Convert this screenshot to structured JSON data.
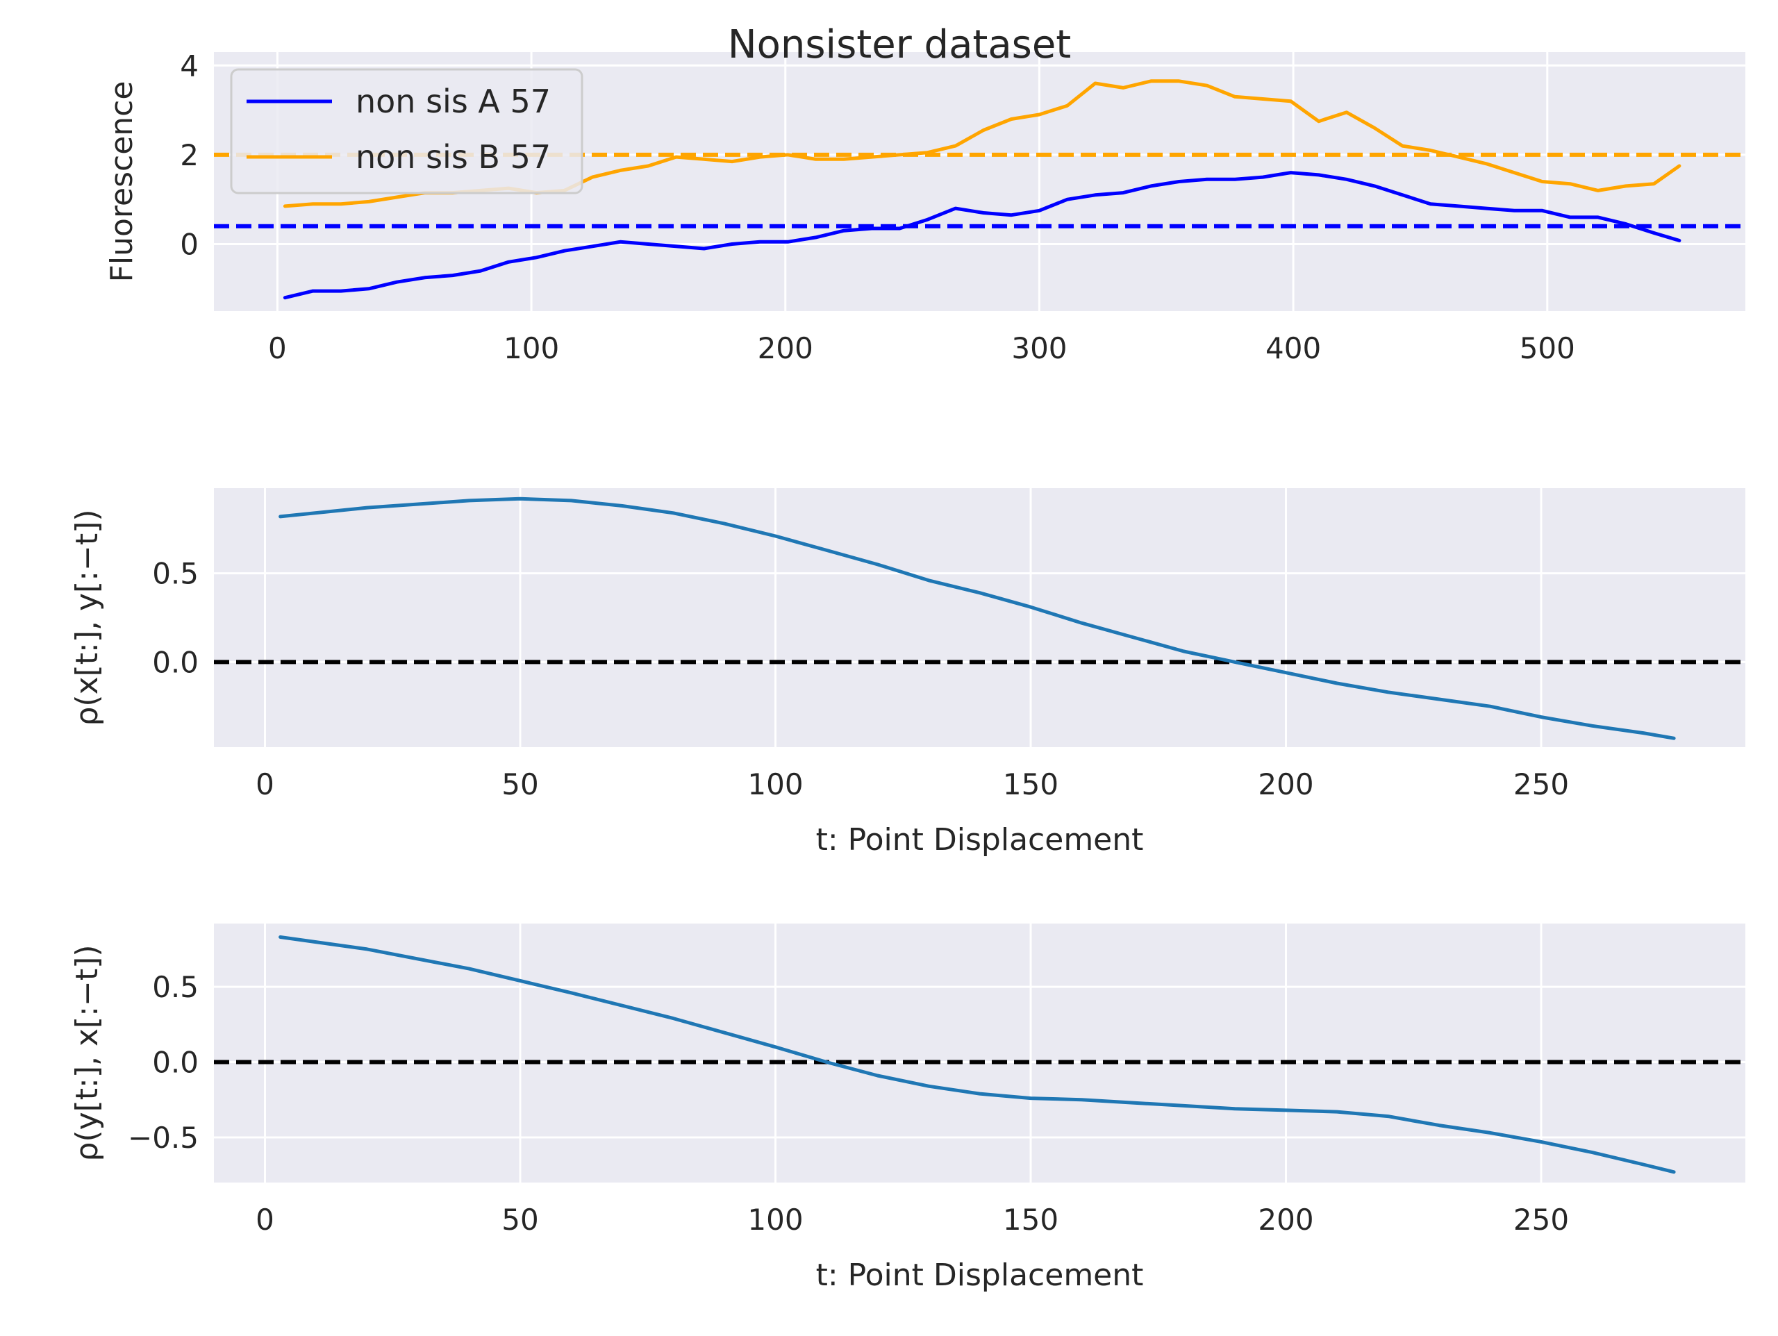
{
  "figure": {
    "title": "Nonsister dataset"
  },
  "chart_data": [
    {
      "type": "line",
      "title": "Nonsister dataset",
      "xlabel": "",
      "ylabel": "Fluorescence",
      "xlim": [
        -25,
        578
      ],
      "ylim": [
        -1.5,
        4.3
      ],
      "xticks": [
        0,
        100,
        200,
        300,
        400,
        500
      ],
      "yticks": [
        0,
        2,
        4
      ],
      "grid": true,
      "legend": "top-left",
      "series": [
        {
          "name": "non sis A 57",
          "color": "#0000ff",
          "x": [
            3,
            14,
            25,
            36,
            47,
            58,
            69,
            80,
            91,
            102,
            113,
            124,
            135,
            146,
            157,
            168,
            179,
            190,
            201,
            212,
            223,
            234,
            245,
            256,
            267,
            278,
            289,
            300,
            311,
            322,
            333,
            344,
            355,
            366,
            377,
            388,
            399,
            410,
            421,
            432,
            443,
            454,
            465,
            476,
            487,
            498,
            509,
            520,
            531,
            542,
            552
          ],
          "values": [
            -1.2,
            -1.05,
            -1.05,
            -1.0,
            -0.85,
            -0.75,
            -0.7,
            -0.6,
            -0.4,
            -0.3,
            -0.15,
            -0.05,
            0.05,
            0.0,
            -0.05,
            -0.1,
            0.0,
            0.05,
            0.05,
            0.15,
            0.3,
            0.35,
            0.35,
            0.55,
            0.8,
            0.7,
            0.65,
            0.75,
            1.0,
            1.1,
            1.15,
            1.3,
            1.4,
            1.45,
            1.45,
            1.5,
            1.6,
            1.55,
            1.45,
            1.3,
            1.1,
            0.9,
            0.85,
            0.8,
            0.75,
            0.75,
            0.6,
            0.6,
            0.45,
            0.25,
            0.08
          ]
        },
        {
          "name": "non sis B 57",
          "color": "#ffa500",
          "x": [
            3,
            14,
            25,
            36,
            47,
            58,
            69,
            80,
            91,
            102,
            113,
            124,
            135,
            146,
            157,
            168,
            179,
            190,
            201,
            212,
            223,
            234,
            245,
            256,
            267,
            278,
            289,
            300,
            311,
            322,
            333,
            344,
            355,
            366,
            377,
            388,
            399,
            410,
            421,
            432,
            443,
            454,
            465,
            476,
            487,
            498,
            509,
            520,
            531,
            542,
            552
          ],
          "values": [
            0.85,
            0.9,
            0.9,
            0.95,
            1.05,
            1.15,
            1.15,
            1.2,
            1.25,
            1.15,
            1.2,
            1.5,
            1.65,
            1.75,
            1.95,
            1.9,
            1.85,
            1.95,
            2.0,
            1.9,
            1.9,
            1.95,
            2.0,
            2.05,
            2.2,
            2.55,
            2.8,
            2.9,
            3.1,
            3.6,
            3.5,
            3.65,
            3.65,
            3.55,
            3.3,
            3.25,
            3.2,
            2.75,
            2.95,
            2.6,
            2.2,
            2.1,
            1.95,
            1.8,
            1.6,
            1.4,
            1.35,
            1.2,
            1.3,
            1.35,
            1.75
          ]
        }
      ],
      "reference_lines": [
        {
          "y": 2.0,
          "color": "#ffa500",
          "style": "dashed"
        },
        {
          "y": 0.4,
          "color": "#0000ff",
          "style": "dashed"
        }
      ]
    },
    {
      "type": "line",
      "xlabel": "t: Point Displacement",
      "ylabel": "ρ(x[t:], y[:−t])",
      "xlim": [
        -10,
        290
      ],
      "ylim": [
        -0.48,
        0.98
      ],
      "xticks": [
        0,
        50,
        100,
        150,
        200,
        250
      ],
      "yticks": [
        0.0,
        0.5
      ],
      "grid": true,
      "series": [
        {
          "color": "#1f77b4",
          "x": [
            3,
            20,
            40,
            50,
            60,
            70,
            80,
            90,
            100,
            110,
            120,
            130,
            140,
            150,
            160,
            170,
            180,
            190,
            200,
            210,
            220,
            230,
            240,
            250,
            260,
            270,
            276
          ],
          "values": [
            0.82,
            0.87,
            0.91,
            0.92,
            0.91,
            0.88,
            0.84,
            0.78,
            0.71,
            0.63,
            0.55,
            0.46,
            0.39,
            0.31,
            0.22,
            0.14,
            0.06,
            0.0,
            -0.06,
            -0.12,
            -0.17,
            -0.21,
            -0.25,
            -0.31,
            -0.36,
            -0.4,
            -0.43
          ]
        }
      ],
      "reference_lines": [
        {
          "y": 0.0,
          "color": "#000000",
          "style": "dashed"
        }
      ]
    },
    {
      "type": "line",
      "xlabel": "t: Point Displacement",
      "ylabel": "ρ(y[t:], x[:−t])",
      "xlim": [
        -10,
        290
      ],
      "ylim": [
        -0.8,
        0.92
      ],
      "xticks": [
        0,
        50,
        100,
        150,
        200,
        250
      ],
      "yticks": [
        -0.5,
        0.0,
        0.5
      ],
      "grid": true,
      "series": [
        {
          "color": "#1f77b4",
          "x": [
            3,
            20,
            40,
            60,
            80,
            100,
            110,
            120,
            130,
            140,
            150,
            160,
            170,
            180,
            190,
            200,
            210,
            220,
            230,
            240,
            250,
            260,
            270,
            276
          ],
          "values": [
            0.83,
            0.75,
            0.62,
            0.46,
            0.29,
            0.1,
            0.0,
            -0.09,
            -0.16,
            -0.21,
            -0.24,
            -0.25,
            -0.27,
            -0.29,
            -0.31,
            -0.32,
            -0.33,
            -0.36,
            -0.42,
            -0.47,
            -0.53,
            -0.6,
            -0.68,
            -0.73
          ]
        }
      ],
      "reference_lines": [
        {
          "y": 0.0,
          "color": "#000000",
          "style": "dashed"
        }
      ]
    }
  ]
}
